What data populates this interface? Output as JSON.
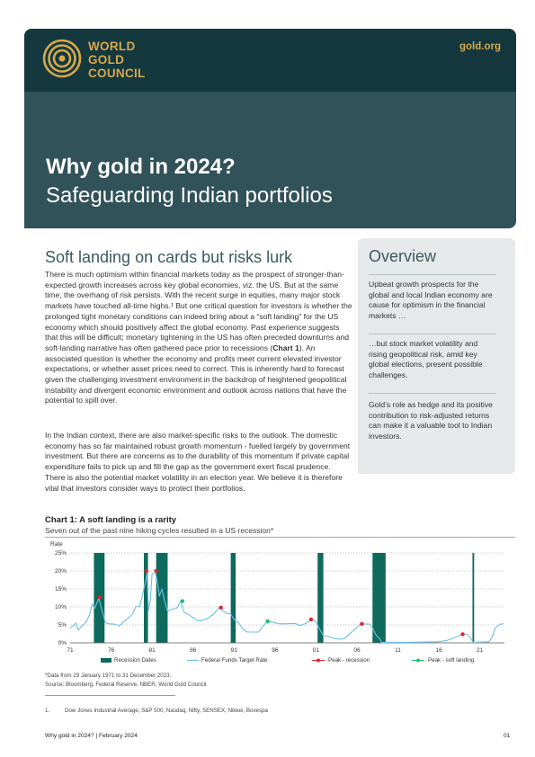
{
  "header": {
    "logo_lines": [
      "WORLD",
      "GOLD",
      "COUNCIL"
    ],
    "site": "gold.org",
    "title": "Why gold in 2024?",
    "subtitle": "Safeguarding Indian portfolios"
  },
  "main": {
    "section_title": "Soft landing on cards but risks lurk",
    "paragraphs": [
      "There is much optimism within financial markets today as the prospect of stronger-than-expected growth increases across key global economies, viz. the US. But at the same time, the overhang of risk persists. With the recent surge in equities, many major stock markets have touched all-time highs.¹ But one critical question for investors is whether the prolonged tight monetary conditions can indeed bring about a “soft landing” for the US economy which should positively affect the global economy. Past experience suggests that this will be difficult; monetary tightening in the US has often preceded downturns and soft-landing narrative has often gathered pace prior to recessions (Chart 1). An associated question is whether the economy and profits meet current elevated investor expectations, or whether asset prices need to correct. This is inherently hard to forecast given the challenging investment environment in the backdrop of heightened geopolitical instability and divergent economic environment and outlook across nations that have the potential to spill over.",
      "In the Indian context, there are also market-specific risks to the outlook. The domestic economy has so far maintained robust growth momentum - fuelled largely by government investment. But there are concerns as to the durability of this momentum if private capital expenditure fails to pick up and fill the gap as the government exert fiscal prudence. There is also the potential market volatility in an election year. We believe it is therefore vital that investors consider ways to protect their portfolios."
    ]
  },
  "overview": {
    "title": "Overview",
    "items": [
      "Upbeat growth prospects for the global and local Indian economy are cause for optimism in the financial markets …",
      "…but stock market volatility and rising geopolitical risk, amid key global elections, present possible challenges.",
      "Gold’s role as hedge and its positive contribution to risk-adjusted returns can make it a valuable tool to Indian investors."
    ]
  },
  "chart": {
    "title": "Chart 1: A soft landing is a rarity",
    "subtitle": "Seven out of the past nine hiking cycles resulted in a US recession*",
    "note": "*Data from 29 January 1971 to 31 December 2023.",
    "source": "Source: Bloomberg, Federal Reserve, NBER, World Gold Council"
  },
  "chart_data": {
    "type": "line",
    "ylabel": "Rate",
    "ylim": [
      0,
      25
    ],
    "yticks": [
      0,
      5,
      10,
      15,
      20,
      25
    ],
    "ytick_labels": [
      "0%",
      "5%",
      "10%",
      "15%",
      "20%",
      "25%"
    ],
    "xlim": [
      1971,
      2024
    ],
    "xticks": [
      1971,
      1976,
      1981,
      1986,
      1991,
      1996,
      2001,
      2006,
      2011,
      2016,
      2021
    ],
    "xtick_labels": [
      "71",
      "76",
      "81",
      "86",
      "91",
      "96",
      "01",
      "06",
      "11",
      "16",
      "21"
    ],
    "grid": "horizontal dashed",
    "legend_position": "bottom",
    "colors": {
      "recession": "#0e6a5c",
      "rate": "#6cc0e8",
      "peak_recession": "#e0242b",
      "peak_soft": "#1ec06a"
    },
    "series": [
      {
        "name": "Federal Funds Target Rate",
        "points": [
          [
            1971.0,
            4.1
          ],
          [
            1971.4,
            4.8
          ],
          [
            1971.7,
            5.5
          ],
          [
            1972.0,
            3.5
          ],
          [
            1972.5,
            4.8
          ],
          [
            1973.0,
            5.9
          ],
          [
            1973.4,
            8.0
          ],
          [
            1973.7,
            10.8
          ],
          [
            1974.0,
            9.6
          ],
          [
            1974.5,
            12.4
          ],
          [
            1974.9,
            9.0
          ],
          [
            1975.3,
            5.6
          ],
          [
            1975.8,
            5.3
          ],
          [
            1976.5,
            5.2
          ],
          [
            1977.0,
            4.7
          ],
          [
            1977.6,
            6.0
          ],
          [
            1978.0,
            6.7
          ],
          [
            1978.6,
            8.0
          ],
          [
            1979.0,
            10.0
          ],
          [
            1979.5,
            10.2
          ],
          [
            1979.9,
            14.0
          ],
          [
            1980.2,
            17.0
          ],
          [
            1980.4,
            19.4
          ],
          [
            1980.55,
            9.0
          ],
          [
            1980.8,
            12.0
          ],
          [
            1981.0,
            19.1
          ],
          [
            1981.4,
            19.6
          ],
          [
            1981.7,
            16.0
          ],
          [
            1981.9,
            13.0
          ],
          [
            1982.2,
            15.0
          ],
          [
            1982.6,
            11.0
          ],
          [
            1982.9,
            8.8
          ],
          [
            1983.5,
            9.4
          ],
          [
            1984.0,
            9.6
          ],
          [
            1984.5,
            11.6
          ],
          [
            1984.9,
            8.5
          ],
          [
            1985.5,
            7.8
          ],
          [
            1986.5,
            6.2
          ],
          [
            1987.0,
            6.1
          ],
          [
            1987.8,
            6.8
          ],
          [
            1988.5,
            8.0
          ],
          [
            1989.2,
            9.8
          ],
          [
            1989.6,
            9.0
          ],
          [
            1990.0,
            8.3
          ],
          [
            1990.6,
            8.0
          ],
          [
            1991.0,
            6.5
          ],
          [
            1991.6,
            5.5
          ],
          [
            1992.0,
            4.0
          ],
          [
            1992.6,
            3.0
          ],
          [
            1993.5,
            3.0
          ],
          [
            1994.0,
            3.0
          ],
          [
            1994.6,
            4.8
          ],
          [
            1995.1,
            6.0
          ],
          [
            1995.8,
            5.7
          ],
          [
            1996.5,
            5.3
          ],
          [
            1997.0,
            5.3
          ],
          [
            1998.5,
            5.4
          ],
          [
            1999.0,
            4.8
          ],
          [
            1999.8,
            5.4
          ],
          [
            2000.5,
            6.5
          ],
          [
            2001.0,
            5.9
          ],
          [
            2001.4,
            4.0
          ],
          [
            2001.9,
            2.0
          ],
          [
            2002.5,
            1.75
          ],
          [
            2003.3,
            1.2
          ],
          [
            2004.0,
            1.0
          ],
          [
            2004.5,
            1.2
          ],
          [
            2005.5,
            3.3
          ],
          [
            2006.5,
            5.25
          ],
          [
            2007.5,
            5.25
          ],
          [
            2007.8,
            4.6
          ],
          [
            2008.3,
            2.3
          ],
          [
            2008.8,
            1.0
          ],
          [
            2009.0,
            0.15
          ],
          [
            2012.0,
            0.15
          ],
          [
            2015.9,
            0.3
          ],
          [
            2016.9,
            0.6
          ],
          [
            2017.9,
            1.4
          ],
          [
            2018.9,
            2.4
          ],
          [
            2019.4,
            2.4
          ],
          [
            2019.8,
            1.6
          ],
          [
            2020.2,
            0.1
          ],
          [
            2022.1,
            0.3
          ],
          [
            2022.5,
            1.6
          ],
          [
            2022.9,
            4.2
          ],
          [
            2023.5,
            5.2
          ],
          [
            2023.9,
            5.33
          ]
        ]
      },
      {
        "name": "Recession Dates",
        "ranges": [
          [
            1973.9,
            1975.2
          ],
          [
            1980.0,
            1980.5
          ],
          [
            1981.5,
            1982.9
          ],
          [
            1990.6,
            1991.2
          ],
          [
            2001.2,
            2001.9
          ],
          [
            2007.9,
            2009.5
          ],
          [
            2020.1,
            2020.3
          ]
        ]
      },
      {
        "name": "Peak - recession",
        "points": [
          [
            1974.6,
            12.7
          ],
          [
            1980.3,
            20.0
          ],
          [
            1981.5,
            20.0
          ],
          [
            1989.4,
            9.8
          ],
          [
            2000.4,
            6.5
          ],
          [
            2006.6,
            5.25
          ],
          [
            2018.9,
            2.4
          ]
        ]
      },
      {
        "name": "Peak - soft landing",
        "points": [
          [
            1984.7,
            11.6
          ],
          [
            1995.1,
            6.0
          ]
        ]
      }
    ],
    "legend": [
      "Recession Dates",
      "Federal Funds Target Rate",
      "Peak - recession",
      "Peak - soft landing"
    ]
  },
  "footnote": {
    "number": "1.",
    "text": "Dow Jones Industrial Average, S&P 500, Nasdaq, Nifty, SENSEX, Nikkei, Bovespa"
  },
  "footer": {
    "left": "Why gold in 2024? | February 2024",
    "right": "01"
  }
}
